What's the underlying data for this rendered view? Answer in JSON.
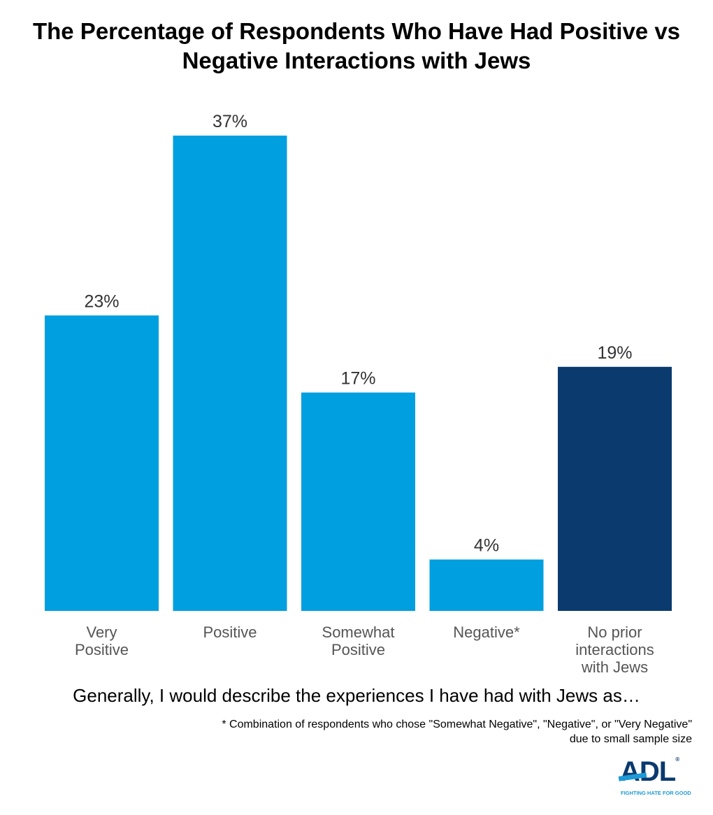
{
  "chart_data": {
    "type": "bar",
    "title": "The Percentage of Respondents Who Have Had Positive vs Negative Interactions with Jews",
    "categories": [
      [
        "Very",
        "Positive"
      ],
      [
        "Positive"
      ],
      [
        "Somewhat",
        "Positive"
      ],
      [
        "Negative*"
      ],
      [
        "No prior",
        "interactions",
        "with Jews"
      ]
    ],
    "values": [
      23,
      37,
      17,
      4,
      19
    ],
    "value_labels": [
      "23%",
      "37%",
      "17%",
      "4%",
      "19%"
    ],
    "colors": [
      "#009fdf",
      "#009fdf",
      "#009fdf",
      "#009fdf",
      "#0b3a6f"
    ],
    "xlabel": "Generally, I would describe the experiences I have had with Jews as…",
    "ylabel": "",
    "ylim": [
      0,
      37
    ],
    "grid": false,
    "footnote": [
      "* Combination of respondents who chose \"Somewhat Negative\", \"Negative\", or \"Very Negative\"",
      "due to small sample size"
    ]
  },
  "logo": {
    "text": "ADL",
    "tagline": "FIGHTING HATE FOR GOOD"
  }
}
